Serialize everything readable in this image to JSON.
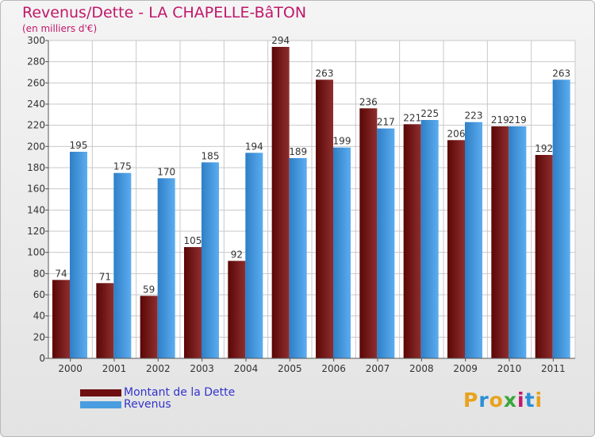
{
  "header": {
    "title": "Revenus/Dette - LA CHAPELLE-BâTON",
    "subtitle": "(en milliers d'€)"
  },
  "logo": {
    "letters": [
      "P",
      "r",
      "o",
      "x",
      "i",
      "t",
      "i"
    ],
    "text": "Proxiti"
  },
  "colors": {
    "dette_dark": "#5a0606",
    "dette_light": "#8e2e2e",
    "revenus_dark": "#2e7fc6",
    "revenus_light": "#5cacf0",
    "title": "#c0186a",
    "legend_text": "#3333cc",
    "grid": "#c8c8c8"
  },
  "legend": {
    "items": [
      {
        "label": "Montant de la Dette",
        "color": "#6e1010"
      },
      {
        "label": "Revenus",
        "color": "#4a9de0"
      }
    ]
  },
  "chart_data": {
    "type": "bar",
    "categories": [
      "2000",
      "2001",
      "2002",
      "2003",
      "2004",
      "2005",
      "2006",
      "2007",
      "2008",
      "2009",
      "2010",
      "2011"
    ],
    "series": [
      {
        "name": "Montant de la Dette",
        "values": [
          74,
          71,
          59,
          105,
          92,
          294,
          263,
          236,
          221,
          206,
          219,
          192
        ]
      },
      {
        "name": "Revenus",
        "values": [
          195,
          175,
          170,
          185,
          194,
          189,
          199,
          217,
          225,
          223,
          219,
          263
        ]
      }
    ],
    "ylim": [
      0,
      300
    ],
    "yticks": [
      0,
      20,
      40,
      60,
      80,
      100,
      120,
      140,
      160,
      180,
      200,
      220,
      240,
      260,
      280,
      300
    ],
    "grid": true,
    "data_labels": true,
    "legend_position": "bottom-left"
  }
}
